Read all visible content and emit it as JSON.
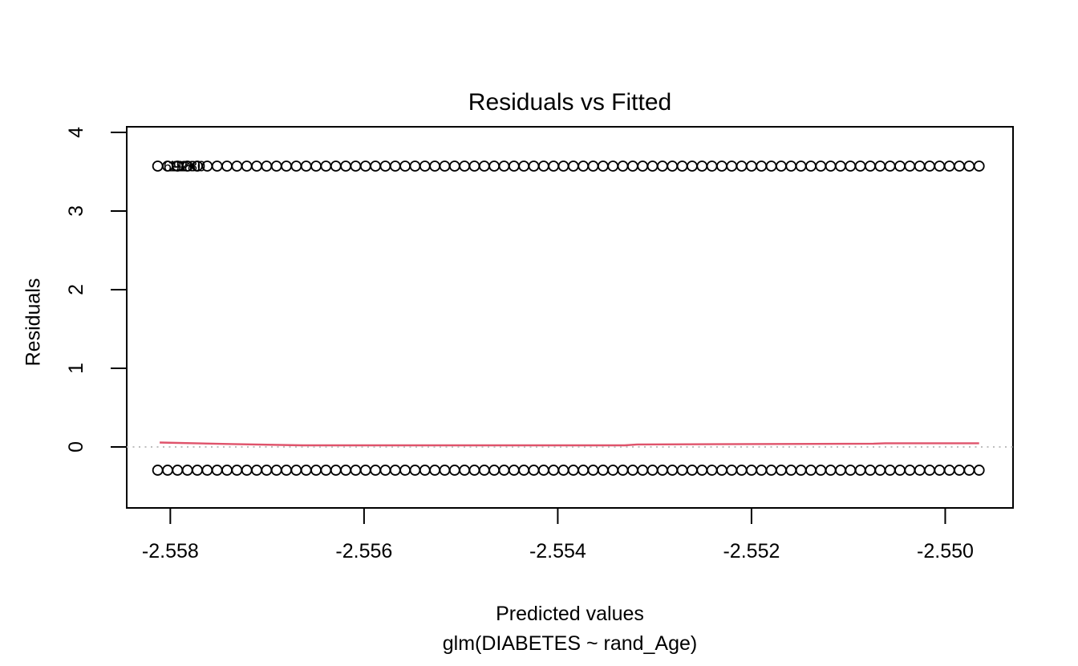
{
  "title": "Residuals vs Fitted",
  "y_axis_title": "Residuals",
  "x_axis_title": "Predicted values",
  "x_axis_subtitle": "glm(DIABETES ~ rand_Age)",
  "colors": {
    "background": "#ffffff",
    "points": "#000000",
    "smooth_line": "#DF536B",
    "zero_line": "#BEBEBE",
    "axis": "#000000",
    "text": "#000000"
  },
  "chart_data": {
    "type": "scatter",
    "title": "Residuals vs Fitted",
    "xlabel": "Predicted values",
    "sublabel": "glm(DIABETES ~ rand_Age)",
    "ylabel": "Residuals",
    "xlim": [
      -2.55845,
      -2.5493
    ],
    "ylim": [
      -0.776,
      4.071
    ],
    "grid": false,
    "x_ticks": [
      {
        "value": -2.558,
        "label": "-2.558"
      },
      {
        "value": -2.556,
        "label": "-2.556"
      },
      {
        "value": -2.554,
        "label": "-2.554"
      },
      {
        "value": -2.552,
        "label": "-2.552"
      },
      {
        "value": -2.55,
        "label": "-2.550"
      }
    ],
    "y_ticks": [
      {
        "value": 0,
        "label": "0"
      },
      {
        "value": 1,
        "label": "1"
      },
      {
        "value": 2,
        "label": "2"
      },
      {
        "value": 3,
        "label": "3"
      },
      {
        "value": 4,
        "label": "4"
      }
    ],
    "bands": [
      {
        "name": "positive-residual-band",
        "y": 3.571,
        "x_start": -2.55813,
        "x_end": -2.54965,
        "count": 84
      },
      {
        "name": "negative-residual-band",
        "y": -0.296,
        "x_start": -2.55813,
        "x_end": -2.54965,
        "count": 84
      }
    ],
    "zero_line": {
      "y": 0,
      "style": "dotted"
    },
    "smooth_line": {
      "points": [
        [
          -2.55811,
          0.056
        ],
        [
          -2.55736,
          0.036
        ],
        [
          -2.55664,
          0.02
        ],
        [
          -2.55331,
          0.02
        ],
        [
          -2.55318,
          0.031
        ],
        [
          -2.55074,
          0.041
        ],
        [
          -2.55062,
          0.046
        ],
        [
          -2.54965,
          0.046
        ]
      ]
    },
    "point_labels": [
      {
        "text": "6928",
        "x": -2.55807,
        "y": 3.571
      },
      {
        "text": "1980",
        "x": -2.55802,
        "y": 3.571
      },
      {
        "text": "9280",
        "x": -2.55797,
        "y": 3.571
      }
    ]
  }
}
